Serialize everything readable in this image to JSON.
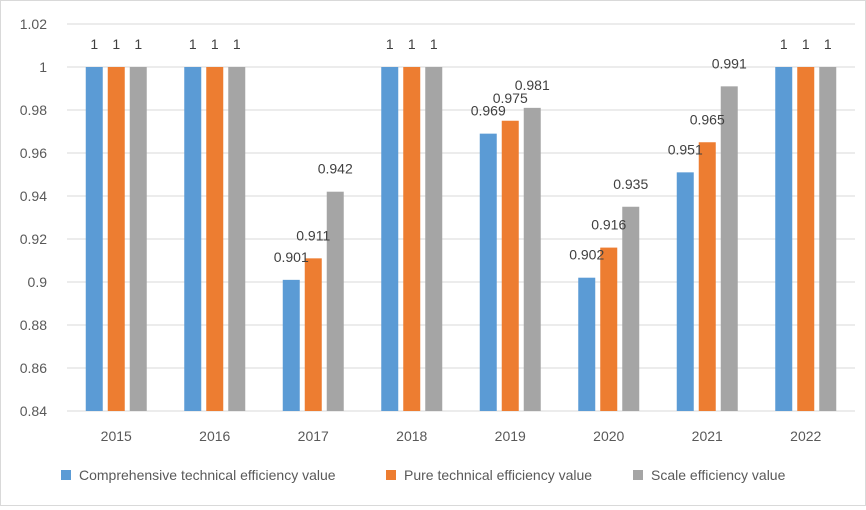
{
  "chart_data": {
    "type": "bar",
    "title": "",
    "xlabel": "",
    "ylabel": "",
    "ylim": [
      0.84,
      1.02
    ],
    "yticks": [
      0.84,
      0.86,
      0.88,
      0.9,
      0.92,
      0.94,
      0.96,
      0.98,
      1,
      1.02
    ],
    "ytick_labels": [
      "0.84",
      "0.86",
      "0.88",
      "0.9",
      "0.92",
      "0.94",
      "0.96",
      "0.98",
      "1",
      "1.02"
    ],
    "grid": "horizontal",
    "legend_position": "bottom",
    "categories": [
      "2015",
      "2016",
      "2017",
      "2018",
      "2019",
      "2020",
      "2021",
      "2022"
    ],
    "series": [
      {
        "name": "Comprehensive technical efficiency value",
        "color": "#5b9bd5",
        "values": [
          1,
          1,
          0.901,
          1,
          0.969,
          0.902,
          0.951,
          1
        ],
        "labels": [
          "1",
          "1",
          "0.901",
          "1",
          "0.969",
          "0.902",
          "0.951",
          "1"
        ]
      },
      {
        "name": "Pure technical efficiency value",
        "color": "#ed7d31",
        "values": [
          1,
          1,
          0.911,
          1,
          0.975,
          0.916,
          0.965,
          1
        ],
        "labels": [
          "1",
          "1",
          "0.911",
          "1",
          "0.975",
          "0.916",
          "0.965",
          "1"
        ]
      },
      {
        "name": "Scale efficiency value",
        "color": "#a5a5a5",
        "values": [
          1,
          1,
          0.942,
          1,
          0.981,
          0.935,
          0.991,
          1
        ],
        "labels": [
          "1",
          "1",
          "0.942",
          "1",
          "0.981",
          "0.935",
          "0.991",
          "1"
        ]
      }
    ]
  }
}
